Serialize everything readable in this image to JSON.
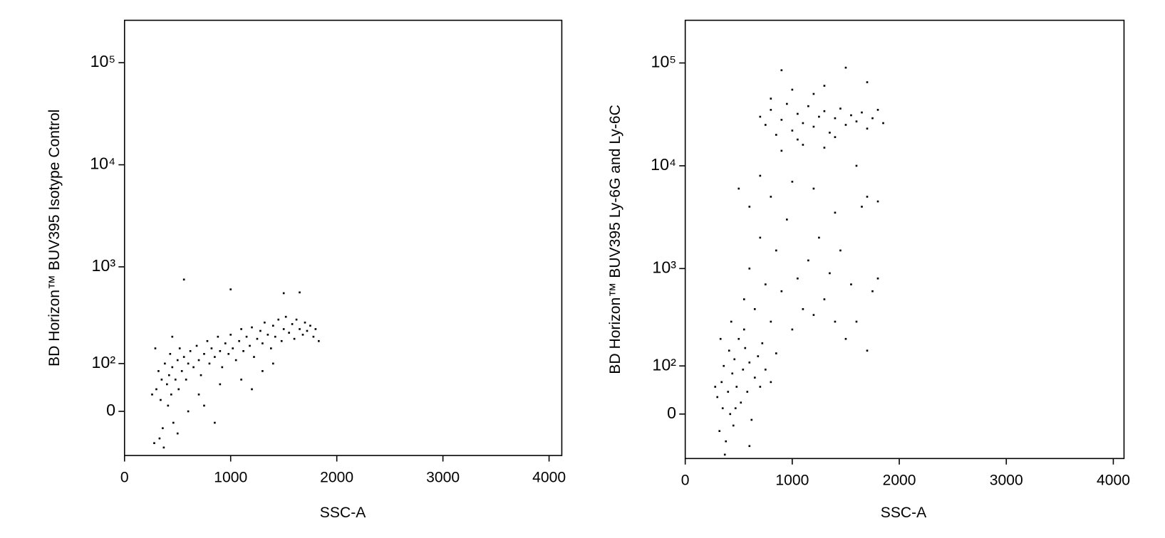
{
  "chart_data": [
    {
      "type": "scatter",
      "x_label": "SSC-A",
      "y_label": "BD Horizon™ BUV395 Isotype Control",
      "xlim": [
        0,
        4120
      ],
      "xticks": [
        0,
        1000,
        2000,
        3000,
        4000
      ],
      "ylim": [
        -90,
        260000
      ],
      "yscale": "biexponential",
      "yticks": [
        0,
        {
          "value": 100,
          "label": "10²"
        },
        {
          "value": 1000,
          "label": "10³"
        },
        {
          "value": 10000,
          "label": "10⁴"
        },
        {
          "value": 100000,
          "label": "10⁵"
        }
      ],
      "color": "#000000",
      "x": [
        300,
        320,
        340,
        350,
        360,
        380,
        400,
        410,
        420,
        430,
        440,
        450,
        460,
        480,
        500,
        510,
        520,
        540,
        560,
        580,
        600,
        620,
        650,
        680,
        700,
        720,
        750,
        780,
        800,
        820,
        850,
        880,
        900,
        920,
        950,
        980,
        1000,
        1020,
        1050,
        1080,
        1100,
        1120,
        1150,
        1180,
        1200,
        1220,
        1250,
        1280,
        1300,
        1320,
        1350,
        1380,
        1400,
        1420,
        1450,
        1480,
        1500,
        1520,
        1550,
        1580,
        1600,
        1620,
        1650,
        1680,
        1700,
        1720,
        1750,
        1780,
        1800,
        1830,
        280,
        330,
        370,
        290,
        260,
        560,
        1000,
        1650,
        1500,
        700,
        900,
        1100,
        1300,
        1400,
        1200,
        850,
        600,
        450,
        500,
        750
      ],
      "y": [
        40,
        80,
        20,
        60,
        -30,
        100,
        50,
        10,
        70,
        130,
        30,
        90,
        -20,
        60,
        110,
        40,
        150,
        80,
        120,
        60,
        100,
        140,
        90,
        160,
        110,
        70,
        130,
        180,
        100,
        150,
        120,
        200,
        140,
        90,
        170,
        130,
        210,
        150,
        110,
        180,
        240,
        140,
        200,
        160,
        250,
        120,
        190,
        230,
        170,
        280,
        210,
        150,
        260,
        200,
        300,
        180,
        240,
        320,
        220,
        270,
        190,
        300,
        240,
        210,
        280,
        230,
        260,
        200,
        240,
        180,
        -60,
        -50,
        -70,
        150,
        30,
        750,
        600,
        560,
        550,
        30,
        50,
        60,
        80,
        100,
        40,
        -20,
        0,
        200,
        -40,
        10
      ]
    },
    {
      "type": "scatter",
      "x_label": "SSC-A",
      "y_label": "BD Horizon™ BUV395 Ly-6G and Ly-6C",
      "xlim": [
        0,
        4100
      ],
      "xticks": [
        0,
        1000,
        2000,
        3000,
        4000
      ],
      "ylim": [
        -90,
        260000
      ],
      "yscale": "biexponential",
      "yticks": [
        0,
        {
          "value": 100,
          "label": "10²"
        },
        {
          "value": 1000,
          "label": "10³"
        },
        {
          "value": 10000,
          "label": "10⁴"
        },
        {
          "value": 100000,
          "label": "10⁵"
        }
      ],
      "color": "#000000",
      "x": [
        300,
        320,
        340,
        350,
        360,
        380,
        400,
        410,
        420,
        440,
        450,
        460,
        480,
        500,
        520,
        540,
        560,
        580,
        600,
        620,
        650,
        680,
        700,
        720,
        750,
        800,
        850,
        280,
        330,
        370,
        430,
        470,
        550,
        600,
        550,
        600,
        650,
        700,
        750,
        800,
        850,
        900,
        950,
        1000,
        1050,
        1100,
        1150,
        1200,
        1250,
        1300,
        1350,
        1400,
        1450,
        1500,
        1550,
        1600,
        1650,
        1700,
        1750,
        1800,
        500,
        600,
        700,
        800,
        1700,
        1800,
        1600,
        1400,
        1200,
        1000,
        700,
        750,
        800,
        850,
        900,
        950,
        1000,
        1050,
        1100,
        1150,
        1200,
        1250,
        1300,
        1350,
        1400,
        1450,
        1500,
        1550,
        1600,
        1650,
        1700,
        1750,
        1800,
        1850,
        1100,
        900,
        1300,
        800,
        1200,
        1500,
        900,
        1000,
        1300,
        1700,
        1050,
        1400
      ],
      "y": [
        30,
        -30,
        60,
        10,
        100,
        -50,
        40,
        150,
        0,
        80,
        -20,
        120,
        50,
        200,
        20,
        90,
        160,
        40,
        110,
        -10,
        70,
        130,
        50,
        180,
        90,
        60,
        140,
        50,
        200,
        -80,
        300,
        10,
        250,
        -60,
        500,
        1000,
        400,
        2000,
        700,
        300,
        1500,
        600,
        3000,
        250,
        800,
        400,
        1200,
        350,
        2000,
        500,
        900,
        300,
        1500,
        200,
        700,
        300,
        4000,
        150,
        600,
        800,
        6000,
        4000,
        8000,
        5000,
        5000,
        4500,
        10000,
        3500,
        6000,
        7000,
        30000,
        25000,
        35000,
        20000,
        28000,
        40000,
        22000,
        32000,
        26000,
        38000,
        24000,
        30000,
        34000,
        21000,
        29000,
        36000,
        25000,
        31000,
        27000,
        33000,
        23000,
        29000,
        35000,
        26000,
        16000,
        14000,
        15000,
        45000,
        50000,
        90000,
        85000,
        55000,
        60000,
        65000,
        18000,
        19000
      ]
    }
  ]
}
